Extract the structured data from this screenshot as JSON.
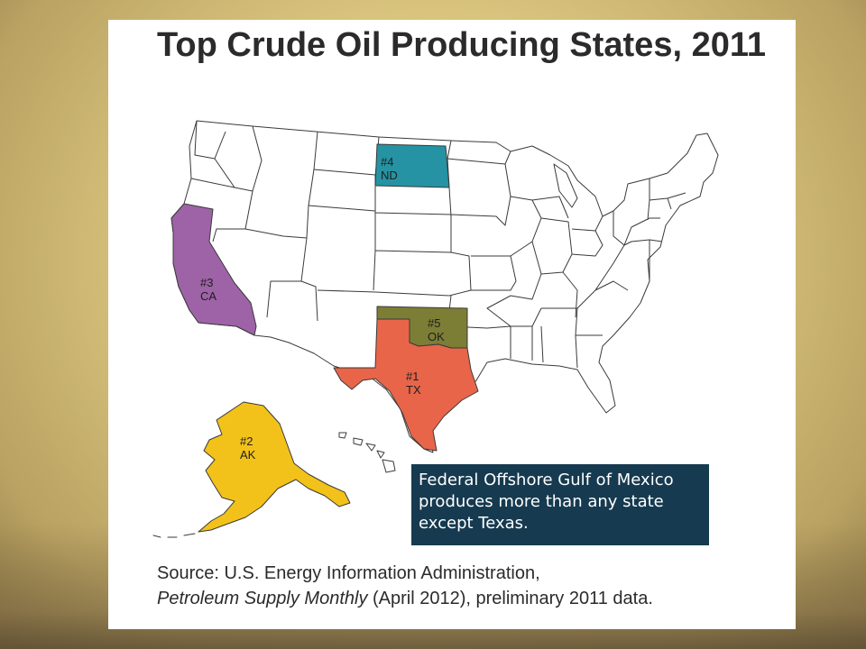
{
  "title": "Top Crude Oil Producing States, 2011",
  "states": [
    {
      "rank": "#1",
      "abbr": "TX",
      "color": "#e8654a"
    },
    {
      "rank": "#2",
      "abbr": "AK",
      "color": "#f2c21a"
    },
    {
      "rank": "#3",
      "abbr": "CA",
      "color": "#9e63a7"
    },
    {
      "rank": "#4",
      "abbr": "ND",
      "color": "#2593a3"
    },
    {
      "rank": "#5",
      "abbr": "OK",
      "color": "#7c7e35"
    }
  ],
  "callout": "Federal Offshore Gulf of Mexico produces more than any state except Texas.",
  "source": {
    "prefix": "Source: U.S. Energy Information Administration,",
    "publication": "Petroleum Supply Monthly",
    "suffix": " (April 2012), preliminary 2011 data."
  },
  "colors": {
    "background": "#d9c47e",
    "panel": "#ffffff",
    "callout_bg": "#163a4f",
    "state_fill": "#ffffff",
    "state_border": "#3a3a3a"
  }
}
